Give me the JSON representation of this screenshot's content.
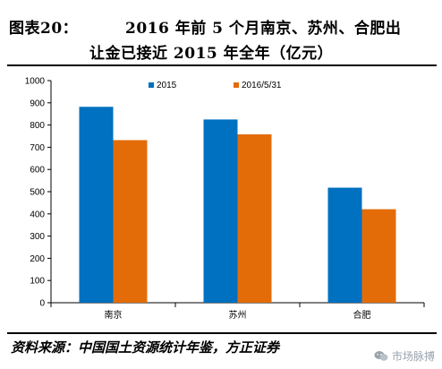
{
  "title": {
    "prefix": "图表20：",
    "line1": "2016 年前 5 个月南京、苏州、合肥出",
    "line2": "让金已接近 2015 年全年（亿元）"
  },
  "source": "资料来源：中国国土资源统计年鉴，方正证券",
  "watermark": {
    "text": "市场脉搏",
    "icon": "wechat-icon",
    "color": "#9aa3ad"
  },
  "chart_data": {
    "type": "bar",
    "categories": [
      "南京",
      "苏州",
      "合肥"
    ],
    "series": [
      {
        "name": "2015",
        "values": [
          882,
          825,
          518
        ],
        "color": "#0070c0"
      },
      {
        "name": "2016/5/31",
        "values": [
          732,
          758,
          421
        ],
        "color": "#e36c09"
      }
    ],
    "title": "",
    "xlabel": "",
    "ylabel": "",
    "ylim": [
      0,
      1000
    ],
    "yticks": [
      0,
      100,
      200,
      300,
      400,
      500,
      600,
      700,
      800,
      900,
      1000
    ],
    "grid": false,
    "legend": "top-right"
  }
}
